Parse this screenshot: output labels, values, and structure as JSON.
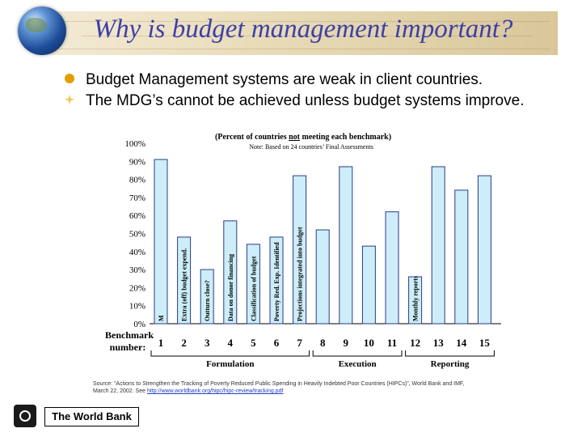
{
  "header": {
    "title": "Why is budget management important?"
  },
  "bullets": [
    {
      "text": "Budget Management systems are weak in client countries."
    },
    {
      "text": "The MDG’s cannot be achieved unless budget systems improve."
    }
  ],
  "chart_data": {
    "type": "bar",
    "title": "(Percent of countries not meeting each benchmark)",
    "title_parts": [
      "(Percent of countries ",
      "not",
      " meeting each benchmark)"
    ],
    "subtitle": "Note: Based on 24 countries’ Final Assessments",
    "xlabel": "Benchmark number:",
    "ylim": [
      0,
      100
    ],
    "y_ticks": [
      "100%",
      "90%",
      "80%",
      "70%",
      "60%",
      "50%",
      "40%",
      "30%",
      "20%",
      "10%",
      "0%"
    ],
    "categories": [
      "1",
      "2",
      "3",
      "4",
      "5",
      "6",
      "7",
      "8",
      "9",
      "10",
      "11",
      "12",
      "13",
      "14",
      "15"
    ],
    "values": [
      91,
      48,
      30,
      57,
      44,
      48,
      82,
      52,
      87,
      43,
      62,
      26,
      87,
      74,
      82
    ],
    "bar_labels": [
      "M",
      "Extra (off) budget expend.",
      "Outturn close?",
      "Data on donor financing",
      "Classification of budget",
      "Poverty Red. Exp. Identified",
      "Projections integrated into budget",
      "",
      "",
      "",
      "",
      "Monthly reports",
      "",
      "",
      ""
    ],
    "groups": [
      {
        "name": "Formulation",
        "from": 1,
        "to": 7
      },
      {
        "name": "Execution",
        "from": 8,
        "to": 11
      },
      {
        "name": "Reporting",
        "from": 12,
        "to": 15
      }
    ],
    "grid": false,
    "bar_color": "#cdeef8",
    "bar_edge": "#2a3a8a"
  },
  "source": {
    "line1": "Source: “Actions to Strengthen the Tracking of Poverty Reduced Public Spending in Heavily Indebted Poor Countries (HIPCs)”, World Bank and IMF,",
    "line2_prefix": "March 22, 2002. See ",
    "link": "http://www.worldbank.org/hipc/hipc-review/tracking.pdf"
  },
  "footer": {
    "org_name": "The World Bank"
  }
}
